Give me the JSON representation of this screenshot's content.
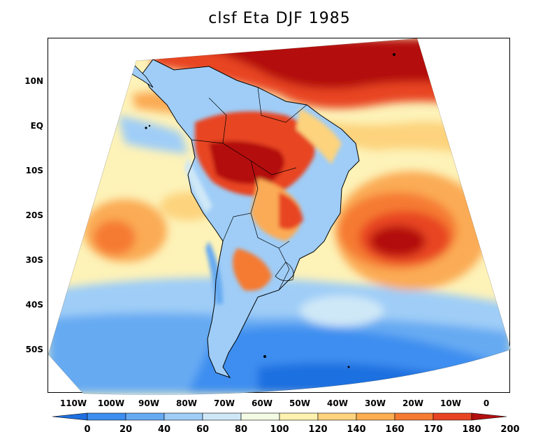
{
  "title": "clsf Eta DJF 1985",
  "lat_ticks": [
    "10N",
    "EQ",
    "10S",
    "20S",
    "30S",
    "40S",
    "50S"
  ],
  "lon_ticks": [
    "110W",
    "100W",
    "90W",
    "80W",
    "70W",
    "60W",
    "50W",
    "40W",
    "30W",
    "20W",
    "10W",
    "0"
  ],
  "colorbar": {
    "labels": [
      "0",
      "20",
      "40",
      "60",
      "80",
      "100",
      "120",
      "140",
      "160",
      "170",
      "180",
      "200"
    ],
    "colors": [
      "#1f6fe0",
      "#3d8ef0",
      "#66aaf2",
      "#9fcdf7",
      "#cfe8f7",
      "#f4fbe4",
      "#fff2b0",
      "#fdd37d",
      "#fcae50",
      "#f57a32",
      "#e84424",
      "#b40f0f"
    ]
  },
  "palette": {
    "ocean_blue": "#6ea8ee",
    "pale_blue": "#cfe8f7",
    "pale_yellow": "#fdf2b8",
    "orange": "#fbab55",
    "dark_red": "#b40f0f",
    "red": "#df3a22",
    "outline": "#000000"
  }
}
